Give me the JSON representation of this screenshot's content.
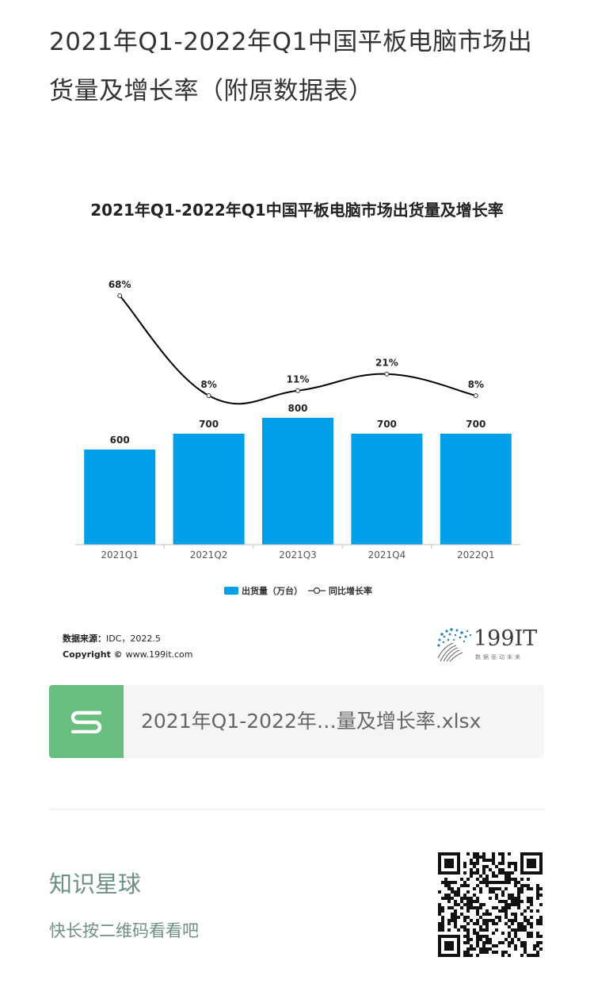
{
  "page": {
    "title": "2021年Q1-2022年Q1中国平板电脑市场出货量及增长率（附原数据表）"
  },
  "chart_data": {
    "type": "bar",
    "title": "2021年Q1-2022年Q1中国平板电脑市场出货量及增长率",
    "categories": [
      "2021Q1",
      "2021Q2",
      "2021Q3",
      "2021Q4",
      "2022Q1"
    ],
    "series": [
      {
        "name": "出货量（万台）",
        "type": "bar",
        "values": [
          600,
          700,
          800,
          700,
          700
        ],
        "labels": [
          "600",
          "700",
          "800",
          "700",
          "700"
        ],
        "color": "#00a0e9"
      },
      {
        "name": "同比增长率",
        "type": "line",
        "values": [
          68,
          8,
          11,
          21,
          8
        ],
        "labels": [
          "68%",
          "8%",
          "11%",
          "21%",
          "8%"
        ],
        "color": "#000000"
      }
    ],
    "legend_position": "bottom",
    "grid": false
  },
  "source": {
    "label": "数据来源：",
    "text": "IDC，2022.5",
    "copyright_label": "Copyright ©",
    "copyright_text": "www.199it.com"
  },
  "logo": {
    "name": "199IT",
    "tagline": "数据驱动未来"
  },
  "file": {
    "name": "2021年Q1-2022年…量及增长率.xlsx",
    "icon": "wps-s-icon"
  },
  "footer": {
    "title": "知识星球",
    "subtitle": "快长按二维码看看吧"
  }
}
